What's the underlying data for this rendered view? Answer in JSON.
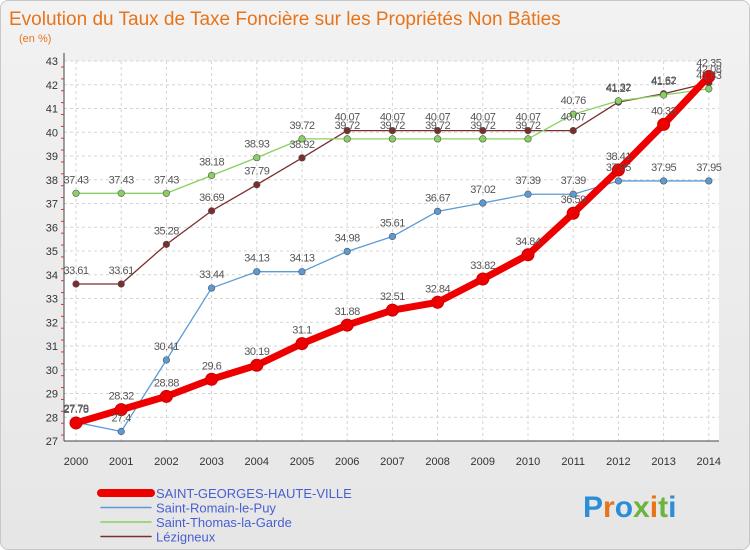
{
  "chart_data": {
    "type": "line",
    "title": "Evolution du Taux de Taxe Foncière sur les Propriétés Non Bâties",
    "subtitle": "(en %)",
    "categories": [
      "2000",
      "2001",
      "2002",
      "2003",
      "2004",
      "2005",
      "2006",
      "2007",
      "2008",
      "2009",
      "2010",
      "2011",
      "2012",
      "2013",
      "2014"
    ],
    "y_ticks": [
      "27",
      "28",
      "29",
      "30",
      "31",
      "32",
      "33",
      "34",
      "35",
      "36",
      "37",
      "38",
      "39",
      "40",
      "41",
      "42",
      "43"
    ],
    "ylim": [
      27,
      43
    ],
    "grid": true,
    "legend_position": "bottom-left",
    "series": [
      {
        "name": "SAINT-GEORGES-HAUTE-VILLE",
        "color": "#ee0000",
        "values": [
          27.76,
          28.32,
          28.88,
          29.6,
          30.19,
          31.1,
          31.88,
          32.51,
          32.84,
          33.82,
          34.84,
          36.59,
          38.41,
          40.33,
          42.35
        ],
        "labels": [
          "27.76",
          "28.32",
          "28.88",
          "29.6",
          "30.19",
          "31.1",
          "31.88",
          "32.51",
          "32.84",
          "33.82",
          "34.84",
          "36.59",
          "38.41",
          "40.33",
          "42.35"
        ]
      },
      {
        "name": "Saint-Romain-le-Puy",
        "color": "#5b9bd5",
        "values": [
          27.79,
          27.4,
          30.41,
          33.44,
          34.13,
          34.13,
          34.98,
          35.61,
          36.67,
          37.02,
          37.39,
          37.39,
          37.95,
          37.95,
          37.95
        ],
        "labels": [
          "27.79",
          "27.4",
          "30.41",
          "33.44",
          "34.13",
          "34.13",
          "34.98",
          "35.61",
          "36.67",
          "37.02",
          "37.39",
          "37.39",
          "37.95",
          "37.95",
          "37.95"
        ]
      },
      {
        "name": "Saint-Thomas-la-Garde",
        "color": "#88d060",
        "values": [
          37.43,
          37.43,
          37.43,
          38.18,
          38.93,
          39.72,
          39.72,
          39.72,
          39.72,
          39.72,
          39.72,
          40.76,
          41.32,
          41.57,
          41.83
        ],
        "labels": [
          "37.43",
          "37.43",
          "37.43",
          "38.18",
          "38.93",
          "39.72",
          "39.72",
          "39.72",
          "39.72",
          "39.72",
          "39.72",
          "40.76",
          "41.32",
          "41.57",
          "41.83"
        ]
      },
      {
        "name": "Lézigneux",
        "color": "#7a2e2e",
        "values": [
          33.61,
          33.61,
          35.28,
          36.69,
          37.79,
          38.92,
          40.07,
          40.07,
          40.07,
          40.07,
          40.07,
          40.07,
          41.27,
          41.62,
          42.08
        ],
        "labels": [
          "33.61",
          "33.61",
          "35.28",
          "36.69",
          "37.79",
          "38.92",
          "40.07",
          "40.07",
          "40.07",
          "40.07",
          "40.07",
          "40.07",
          "41.27",
          "41.62",
          "42.08"
        ]
      }
    ]
  },
  "brand": {
    "text": "Proxiti",
    "letter_colors": [
      "#2a8fd8",
      "#e8741a",
      "#2a8fd8",
      "#6cb33f",
      "#e8741a",
      "#6cb33f",
      "#2a8fd8"
    ]
  }
}
